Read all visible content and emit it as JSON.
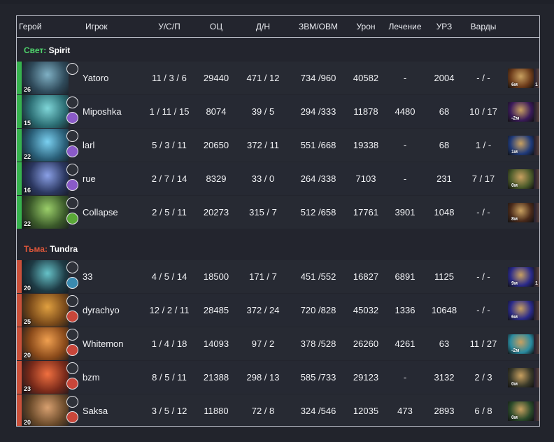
{
  "columns": {
    "hero": "Герой",
    "player": "Игрок",
    "kda": "У/С/П",
    "score": "ОЦ",
    "lh_dn": "Д/Н",
    "gpm_xpm": "ЗВМ/ОВМ",
    "damage": "Урон",
    "healing": "Лечение",
    "tower_damage": "УРЗ",
    "wards": "Варды"
  },
  "teams": [
    {
      "side_label": "Свет:",
      "name": "Spirit",
      "side": "radiant",
      "players": [
        {
          "level": "26",
          "player": "Yatoro",
          "kda": "11 / 3 / 6",
          "score": "29440",
          "lh_dn": "471 / 12",
          "gpm_xpm": "734 /960",
          "damage": "40582",
          "healing": "-",
          "tower_damage": "2004",
          "wards": "- / -",
          "item_text": "6м",
          "item2_text": "1",
          "hero_color": "#2f4a5a",
          "hero_accent": "#7fb0c4",
          "item_color": "#6b3a1a"
        },
        {
          "level": "15",
          "player": "Miposhka",
          "kda": "1 / 11 / 15",
          "score": "8074",
          "lh_dn": "39 / 5",
          "gpm_xpm": "294 /333",
          "damage": "11878",
          "healing": "4480",
          "tower_damage": "68",
          "wards": "10 / 17",
          "item_text": "-2м",
          "item2_text": "",
          "hero_color": "#2c6e74",
          "hero_accent": "#7fd6d8",
          "item_color": "#3a1a5a"
        },
        {
          "level": "22",
          "player": "larl",
          "kda": "5 / 3 / 11",
          "score": "20650",
          "lh_dn": "372 / 11",
          "gpm_xpm": "551 /668",
          "damage": "19338",
          "healing": "-",
          "tower_damage": "68",
          "wards": "1 / -",
          "item_text": "1м",
          "item2_text": "",
          "hero_color": "#2a5f78",
          "hero_accent": "#7ad0f0",
          "item_color": "#1f3a7a"
        },
        {
          "level": "16",
          "player": "rue",
          "kda": "2 / 7 / 14",
          "score": "8329",
          "lh_dn": "33 / 0",
          "gpm_xpm": "264 /338",
          "damage": "7103",
          "healing": "-",
          "tower_damage": "231",
          "wards": "7 / 17",
          "item_text": "0м",
          "item2_text": "",
          "hero_color": "#2b3760",
          "hero_accent": "#8aa0e6",
          "item_color": "#4a5a2a"
        },
        {
          "level": "22",
          "player": "Collapse",
          "kda": "2 / 5 / 11",
          "score": "20273",
          "lh_dn": "315 / 7",
          "gpm_xpm": "512 /658",
          "damage": "17761",
          "healing": "3901",
          "tower_damage": "1048",
          "wards": "- / -",
          "item_text": "8м",
          "item2_text": "",
          "hero_color": "#3b5a2a",
          "hero_accent": "#9bcf6a",
          "item_color": "#4a2a1a"
        }
      ]
    },
    {
      "side_label": "Тьма:",
      "name": "Tundra",
      "side": "dire",
      "players": [
        {
          "level": "20",
          "player": "33",
          "kda": "4 / 5 / 14",
          "score": "18500",
          "lh_dn": "171 / 7",
          "gpm_xpm": "451 /552",
          "damage": "16827",
          "healing": "6891",
          "tower_damage": "1125",
          "wards": "- / -",
          "item_text": "9м",
          "item2_text": "1",
          "hero_color": "#1e3b45",
          "hero_accent": "#66c2c8",
          "item_color": "#2a2a8a"
        },
        {
          "level": "25",
          "player": "dyrachyo",
          "kda": "12 / 2 / 11",
          "score": "28485",
          "lh_dn": "372 / 24",
          "gpm_xpm": "720 /828",
          "damage": "45032",
          "healing": "1336",
          "tower_damage": "10648",
          "wards": "- / -",
          "item_text": "6м",
          "item2_text": "",
          "hero_color": "#7a4a1a",
          "hero_accent": "#e0a040",
          "item_color": "#2a2a8a"
        },
        {
          "level": "20",
          "player": "Whitemon",
          "kda": "1 / 4 / 18",
          "score": "14093",
          "lh_dn": "97 / 2",
          "gpm_xpm": "378 /528",
          "damage": "26260",
          "healing": "4261",
          "tower_damage": "63",
          "wards": "11 / 27",
          "item_text": "-2м",
          "item2_text": "",
          "hero_color": "#8a4a1a",
          "hero_accent": "#f0a050",
          "item_color": "#2a8aa0"
        },
        {
          "level": "23",
          "player": "bzm",
          "kda": "8 / 5 / 11",
          "score": "21388",
          "lh_dn": "298 / 13",
          "gpm_xpm": "585 /733",
          "damage": "29123",
          "healing": "-",
          "tower_damage": "3132",
          "wards": "2 / 3",
          "item_text": "0м",
          "item2_text": "",
          "hero_color": "#7a2a1a",
          "hero_accent": "#f07040",
          "item_color": "#3a3a2a"
        },
        {
          "level": "20",
          "player": "Saksa",
          "kda": "3 / 5 / 12",
          "score": "11880",
          "lh_dn": "72 / 8",
          "gpm_xpm": "324 /546",
          "damage": "12035",
          "healing": "473",
          "tower_damage": "2893",
          "wards": "6 / 8",
          "item_text": "0м",
          "item2_text": "",
          "hero_color": "#6a4a2a",
          "hero_accent": "#d8a070",
          "item_color": "#2a4a2a"
        }
      ]
    }
  ]
}
